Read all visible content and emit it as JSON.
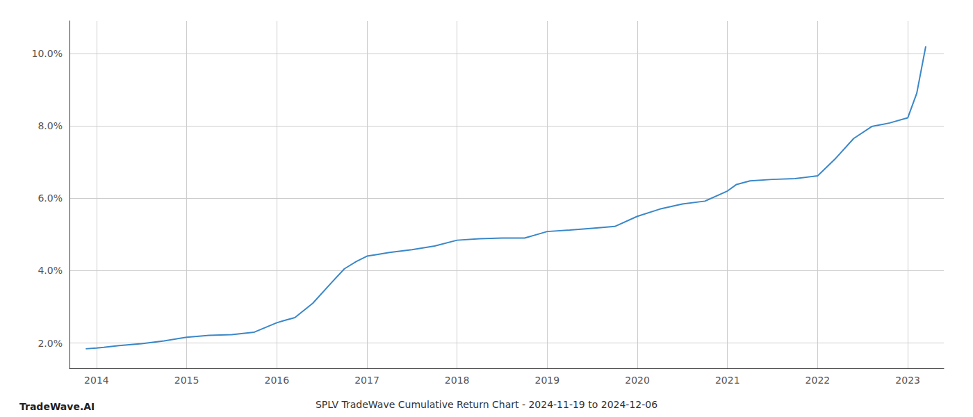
{
  "chart_data": {
    "type": "line",
    "title": "SPLV TradeWave Cumulative Return Chart - 2024-11-19 to 2024-12-06",
    "annotations": [
      "TradeWave.AI"
    ],
    "x": [
      2013.88,
      2014.0,
      2014.08,
      2014.25,
      2014.5,
      2014.75,
      2015.0,
      2015.25,
      2015.5,
      2015.75,
      2016.0,
      2016.08,
      2016.2,
      2016.4,
      2016.6,
      2016.75,
      2016.88,
      2017.0,
      2017.1,
      2017.25,
      2017.5,
      2017.75,
      2018.0,
      2018.25,
      2018.5,
      2018.75,
      2019.0,
      2019.25,
      2019.5,
      2019.75,
      2020.0,
      2020.25,
      2020.5,
      2020.75,
      2021.0,
      2021.1,
      2021.25,
      2021.5,
      2021.75,
      2022.0,
      2022.2,
      2022.4,
      2022.6,
      2022.8,
      2023.0,
      2023.1,
      2023.2
    ],
    "values": [
      1.84,
      1.86,
      1.88,
      1.93,
      1.98,
      2.06,
      2.16,
      2.21,
      2.23,
      2.3,
      2.56,
      2.62,
      2.7,
      3.1,
      3.65,
      4.05,
      4.25,
      4.4,
      4.44,
      4.5,
      4.58,
      4.68,
      4.84,
      4.88,
      4.9,
      4.9,
      5.08,
      5.12,
      5.17,
      5.22,
      5.5,
      5.7,
      5.84,
      5.92,
      6.2,
      6.38,
      6.48,
      6.52,
      6.54,
      6.62,
      7.1,
      7.65,
      7.98,
      8.08,
      8.22,
      8.9,
      10.2
    ],
    "color": "#3a87c8",
    "xlim": [
      2013.7,
      2023.4
    ],
    "xticks": [
      2014,
      2015,
      2016,
      2017,
      2018,
      2019,
      2020,
      2021,
      2022,
      2023
    ],
    "ylim": [
      1.3,
      10.9
    ],
    "yticks": [
      {
        "value": 2.0,
        "label": "2.0%"
      },
      {
        "value": 4.0,
        "label": "4.0%"
      },
      {
        "value": 6.0,
        "label": "6.0%"
      },
      {
        "value": 8.0,
        "label": "8.0%"
      },
      {
        "value": 10.0,
        "label": "10.0%"
      }
    ],
    "grid": true
  }
}
